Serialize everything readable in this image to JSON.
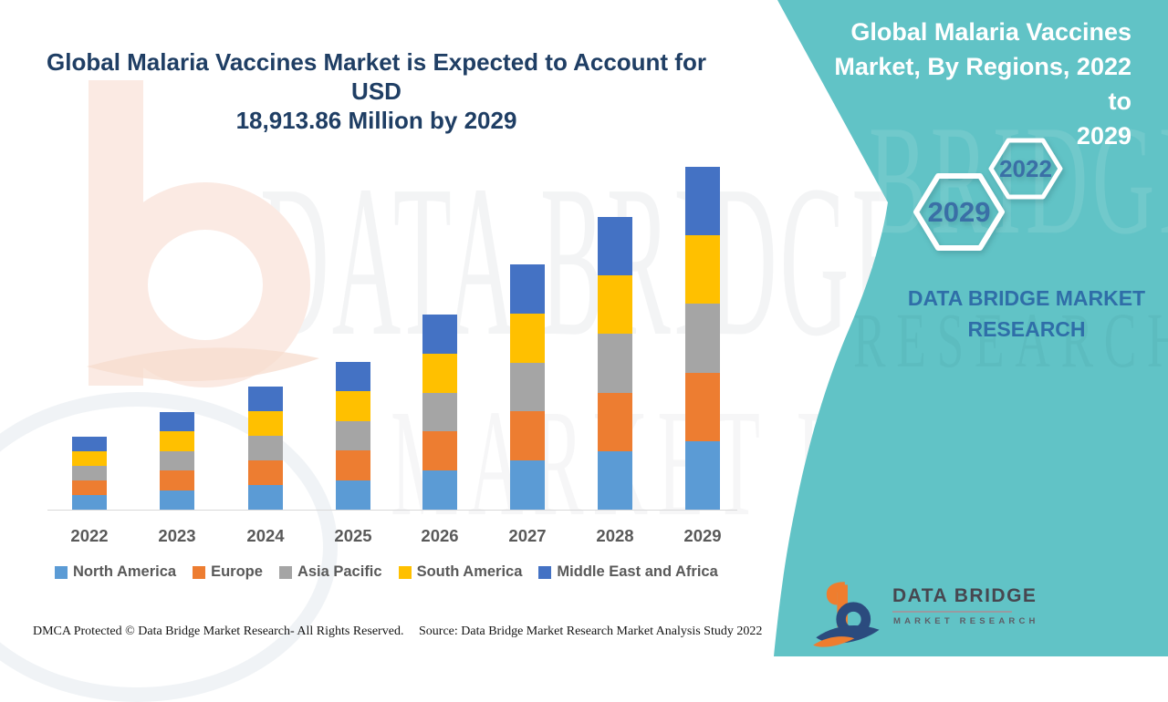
{
  "title": {
    "line1": "Global Malaria Vaccines Market is Expected to Account for USD",
    "line2": "18,913.86 Million by 2029"
  },
  "side_panel": {
    "bg_color": "#61C3C6",
    "heading_line1": "Global Malaria Vaccines",
    "heading_line2": "Market, By Regions, 2022 to",
    "heading_line3": "2029",
    "badge_hex_small": "2022",
    "badge_hex_large": "2029",
    "brand_line1": "DATA BRIDGE MARKET",
    "brand_line2": "RESEARCH"
  },
  "watermarks": {
    "main_line1": "DATA BRIDGE",
    "main_line2": "MARKET RESEARCH",
    "panel_line1": "BRIDGE",
    "panel_line2": "RESEARCH"
  },
  "chart_data": {
    "type": "bar",
    "stacked": true,
    "title": "Global Malaria Vaccines Market is Expected to Account for USD 18,913.86 Million by 2029",
    "categories": [
      "2022",
      "2023",
      "2024",
      "2025",
      "2026",
      "2027",
      "2028",
      "2029"
    ],
    "stack_order_bottom_to_top": [
      "North America",
      "Europe",
      "Asia Pacific",
      "South America",
      "Middle East and Africa"
    ],
    "series": [
      {
        "name": "North America",
        "color": "#5B9BD5",
        "values": [
          804.8,
          1076.4,
          1358.2,
          1630.0,
          2153.0,
          2706.2,
          3229.4,
          3782.8
        ]
      },
      {
        "name": "Europe",
        "color": "#ED7D31",
        "values": [
          804.8,
          1076.4,
          1358.2,
          1630.0,
          2153.0,
          2706.2,
          3229.4,
          3782.8
        ]
      },
      {
        "name": "Asia Pacific",
        "color": "#A5A5A5",
        "values": [
          804.8,
          1076.4,
          1358.2,
          1630.0,
          2153.0,
          2706.2,
          3229.4,
          3782.8
        ]
      },
      {
        "name": "South America",
        "color": "#FFC000",
        "values": [
          804.8,
          1076.4,
          1358.2,
          1630.0,
          2153.0,
          2706.2,
          3229.4,
          3782.8
        ]
      },
      {
        "name": "Middle East and Africa",
        "color": "#4472C4",
        "values": [
          804.8,
          1076.4,
          1358.2,
          1630.0,
          2153.0,
          2706.2,
          3229.4,
          3782.8
        ]
      }
    ],
    "totals_usd_million_est": [
      4024,
      5382,
      6791,
      8150,
      10765,
      13531,
      16147,
      18913.86
    ],
    "value_anchor": "2029 total = 18,913.86 USD Million (from title); other values estimated from bar heights",
    "xlabel": "",
    "ylabel": "",
    "y_axis_visible": false,
    "grid": false,
    "legend_position": "bottom"
  },
  "footer": {
    "left": "DMCA Protected © Data Bridge Market Research- All Rights Reserved.",
    "source": "Source: Data Bridge Market Research Market Analysis Study 2022"
  },
  "logo": {
    "name": "DATA BRIDGE",
    "subtitle": "MARKET RESEARCH"
  }
}
